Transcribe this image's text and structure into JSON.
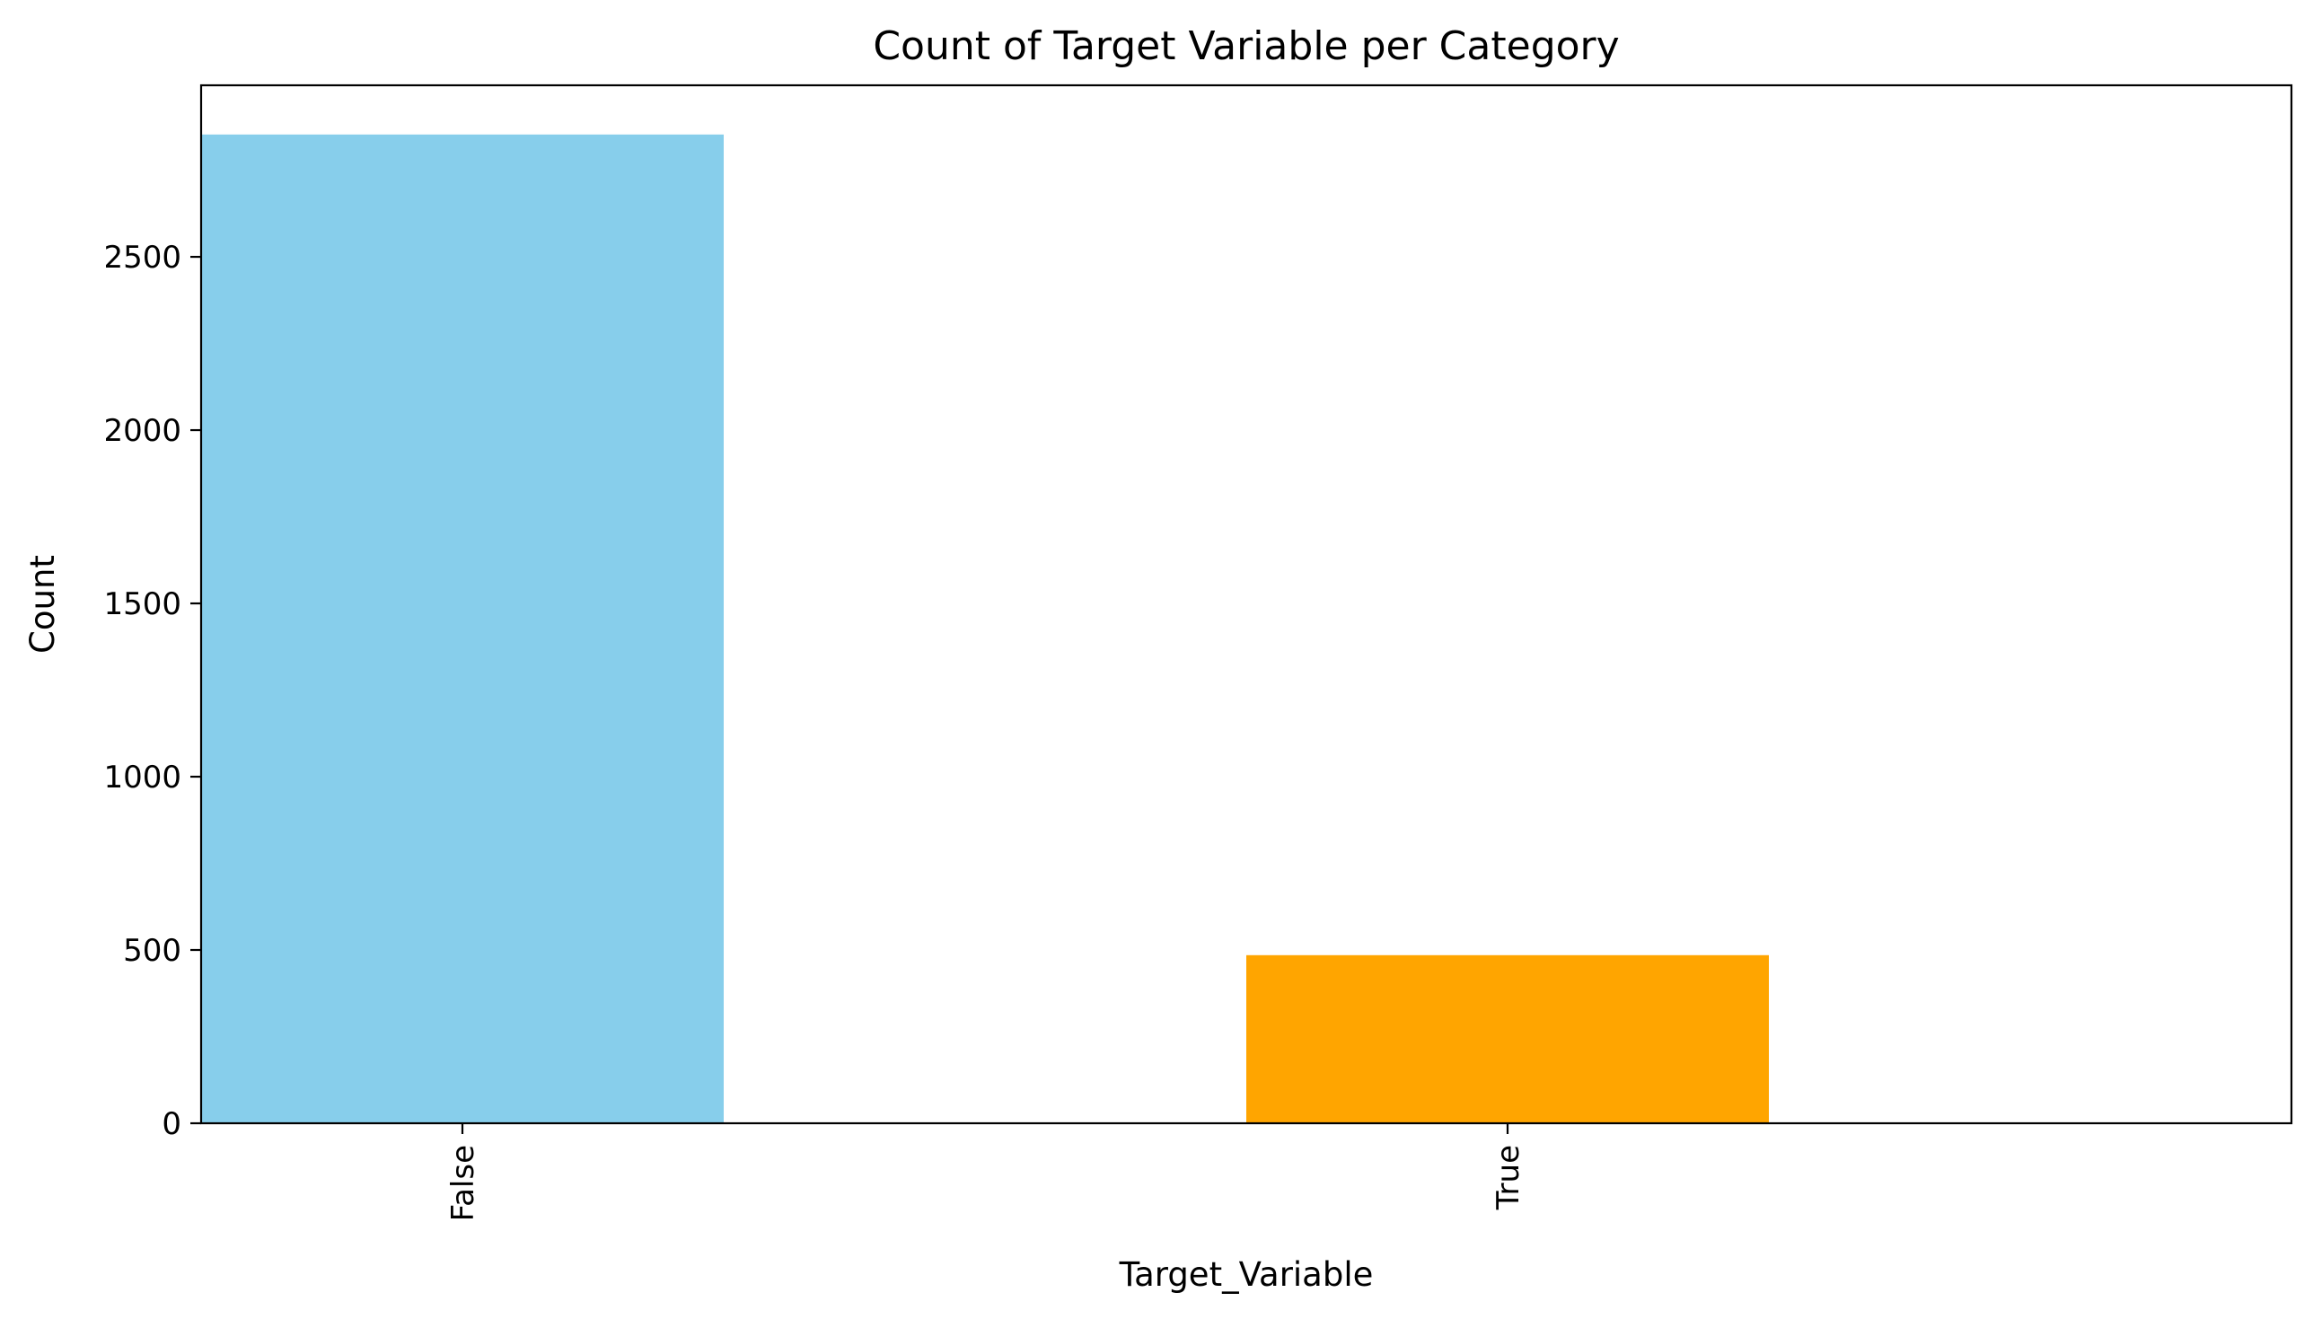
{
  "chart_data": {
    "type": "bar",
    "title": "Count of Target Variable per Category",
    "xlabel": "Target_Variable",
    "ylabel": "Count",
    "categories": [
      "False",
      "True"
    ],
    "values": [
      2853,
      485
    ],
    "colors": [
      "#87CEEB",
      "#FFA500"
    ],
    "ylim": [
      0,
      2995
    ],
    "yticks": [
      0,
      500,
      1000,
      1500,
      2000,
      2500
    ],
    "xtick_rotation": "vertical",
    "grid": false,
    "legend": "none"
  }
}
